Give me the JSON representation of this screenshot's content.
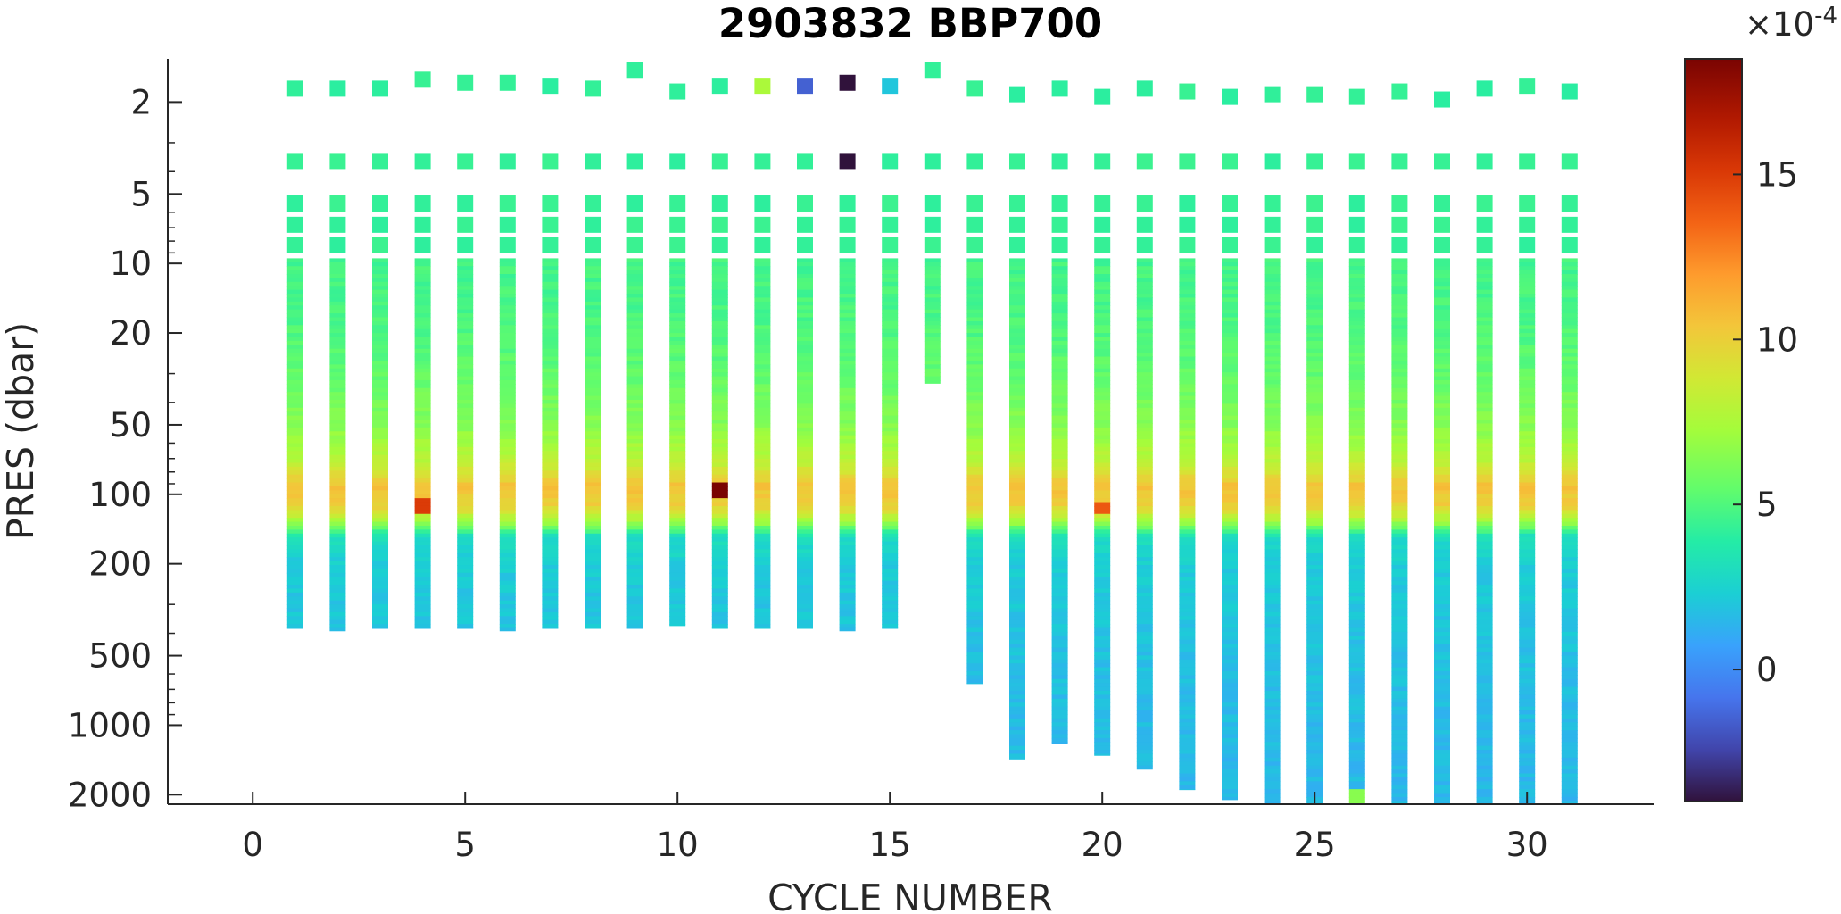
{
  "chart_data": {
    "type": "heatmap",
    "title": "2903832 BBP700",
    "xlabel": "CYCLE NUMBER",
    "ylabel": "PRES (dbar)",
    "xlim": [
      -2,
      33
    ],
    "ylim": [
      1.3,
      2200
    ],
    "y_scale": "log",
    "y_reversed": true,
    "x_ticks": [
      0,
      5,
      10,
      15,
      20,
      25,
      30
    ],
    "x_tick_labels": [
      "0",
      "5",
      "10",
      "15",
      "20",
      "25",
      "30"
    ],
    "y_ticks": [
      2,
      5,
      10,
      20,
      50,
      100,
      200,
      500,
      1000,
      2000
    ],
    "y_tick_labels": [
      "2",
      "5",
      "10",
      "20",
      "50",
      "100",
      "200",
      "500",
      "1000",
      "2000"
    ],
    "colorbar": {
      "colormap": "turbo",
      "clim": [
        -4.0,
        18.5
      ],
      "ticks": [
        0,
        5,
        10,
        15
      ],
      "tick_labels": [
        "0",
        "5",
        "10",
        "15"
      ],
      "exponent_label": "×10",
      "exponent": "-4"
    },
    "value_units_scale": "1e-4",
    "profile_layout": {
      "cycles": [
        1,
        2,
        3,
        4,
        5,
        6,
        7,
        8,
        9,
        10,
        11,
        12,
        13,
        14,
        15,
        16,
        17,
        18,
        19,
        20,
        21,
        22,
        23,
        24,
        25,
        26,
        27,
        28,
        29,
        30,
        31
      ],
      "surface_pres": [
        1.75,
        1.75,
        1.75,
        1.6,
        1.65,
        1.65,
        1.7,
        1.75,
        1.45,
        1.8,
        1.7,
        1.7,
        1.7,
        1.65,
        1.7,
        1.45,
        1.75,
        1.85,
        1.75,
        1.9,
        1.75,
        1.8,
        1.9,
        1.85,
        1.85,
        1.9,
        1.8,
        1.95,
        1.75,
        1.7,
        1.8
      ],
      "max_pres": [
        380,
        390,
        380,
        380,
        380,
        390,
        380,
        380,
        380,
        370,
        380,
        380,
        380,
        390,
        380,
        33,
        660,
        1400,
        1200,
        1350,
        1550,
        1900,
        2100,
        2200,
        2200,
        2200,
        2200,
        2200,
        2200,
        2200,
        2200
      ],
      "extra_surface_pres": [
        null,
        null,
        null,
        null,
        null,
        null,
        null,
        null,
        null,
        null,
        null,
        null,
        null,
        3.6,
        null,
        null,
        null,
        null,
        null,
        null,
        null,
        null,
        null,
        null,
        null,
        null,
        null,
        null,
        null,
        null,
        null
      ]
    },
    "profile_shape": {
      "pres": [
        2,
        4,
        6,
        8,
        10,
        15,
        20,
        30,
        50,
        70,
        90,
        110,
        130,
        150,
        200,
        300,
        500,
        1000,
        2000
      ],
      "values": [
        4.2,
        4.3,
        4.5,
        4.6,
        4.7,
        4.8,
        5.0,
        5.5,
        6.5,
        8.0,
        10.5,
        10.0,
        7.0,
        3.0,
        2.2,
        2.0,
        1.8,
        1.6,
        1.5
      ]
    },
    "notable_values": [
      {
        "cycle": 12,
        "pres": 1.7,
        "value": 7.5
      },
      {
        "cycle": 13,
        "pres": 1.7,
        "value": -1.5
      },
      {
        "cycle": 14,
        "pres": 1.65,
        "value": -4.0
      },
      {
        "cycle": 14,
        "pres": 3.6,
        "value": -4.0
      },
      {
        "cycle": 15,
        "pres": 1.7,
        "value": 2.0
      },
      {
        "cycle": 11,
        "pres": 95,
        "value": 18.5
      },
      {
        "cycle": 4,
        "pres": 110,
        "value": 15.0
      },
      {
        "cycle": 20,
        "pres": 112,
        "value": 14.0
      },
      {
        "cycle": 26,
        "pres": 2000,
        "value": 6.5
      }
    ]
  }
}
